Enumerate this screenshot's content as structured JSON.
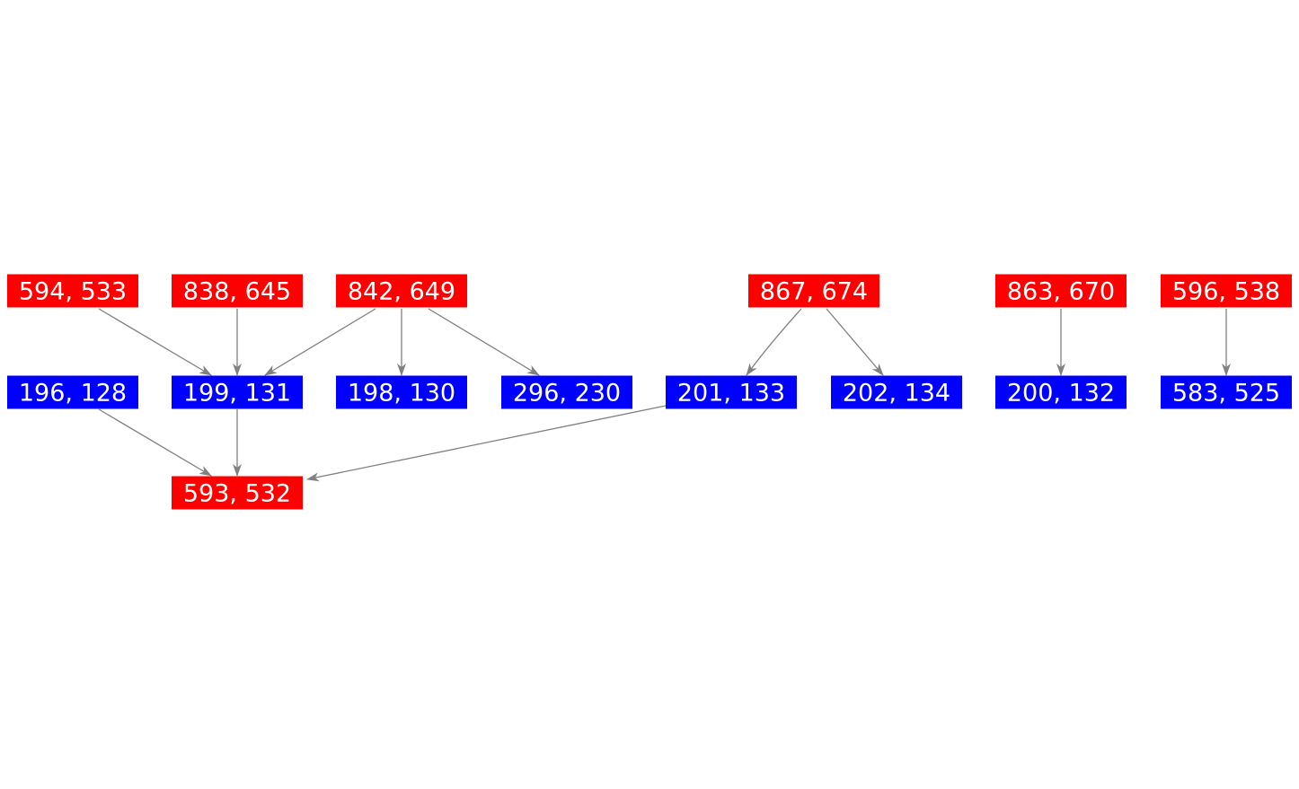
{
  "nodes": [
    {
      "label": "594, 533",
      "color": "#ff0000"
    },
    {
      "label": "838, 645",
      "color": "#ff0000"
    },
    {
      "label": "842, 649",
      "color": "#ff0000"
    },
    {
      "label": "867, 674",
      "color": "#ff0000"
    },
    {
      "label": "863, 670",
      "color": "#ff0000"
    },
    {
      "label": "596, 538",
      "color": "#ff0000"
    },
    {
      "label": "196, 128",
      "color": "#0000ff"
    },
    {
      "label": "199, 131",
      "color": "#0000ff"
    },
    {
      "label": "198, 130",
      "color": "#0000ff"
    },
    {
      "label": "296, 230",
      "color": "#0000ff"
    },
    {
      "label": "201, 133",
      "color": "#0000ff"
    },
    {
      "label": "202, 134",
      "color": "#0000ff"
    },
    {
      "label": "200, 132",
      "color": "#0000ff"
    },
    {
      "label": "583, 525",
      "color": "#0000ff"
    },
    {
      "label": "593, 532",
      "color": "#ff0000"
    }
  ]
}
